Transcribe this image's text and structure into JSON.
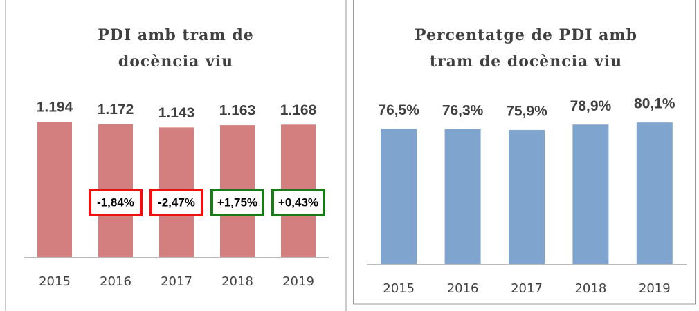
{
  "chart_data": [
    {
      "type": "bar",
      "title": "PDI amb tram de docència viu",
      "categories": [
        "2015",
        "2016",
        "2017",
        "2018",
        "2019"
      ],
      "values": [
        1194,
        1172,
        1143,
        1163,
        1168
      ],
      "value_labels": [
        "1.194",
        "1.172",
        "1.143",
        "1.163",
        "1.168"
      ],
      "color": "#d47f7f",
      "ylim": [
        0,
        1400
      ],
      "annotations": [
        {
          "label": "-1,84%",
          "color": "#ee1111"
        },
        {
          "label": "-2,47%",
          "color": "#ee1111"
        },
        {
          "label": "+1,75%",
          "color": "#1a7a1a"
        },
        {
          "label": "+0,43%",
          "color": "#1a7a1a"
        }
      ]
    },
    {
      "type": "bar",
      "title": "Percentatge de PDI amb tram de docència viu",
      "categories": [
        "2015",
        "2016",
        "2017",
        "2018",
        "2019"
      ],
      "values": [
        76.5,
        76.3,
        75.9,
        78.9,
        80.1
      ],
      "value_labels": [
        "76,5%",
        "76,3%",
        "75,9%",
        "78,9%",
        "80,1%"
      ],
      "color": "#7fa5cf",
      "ylim": [
        0,
        100
      ]
    }
  ]
}
